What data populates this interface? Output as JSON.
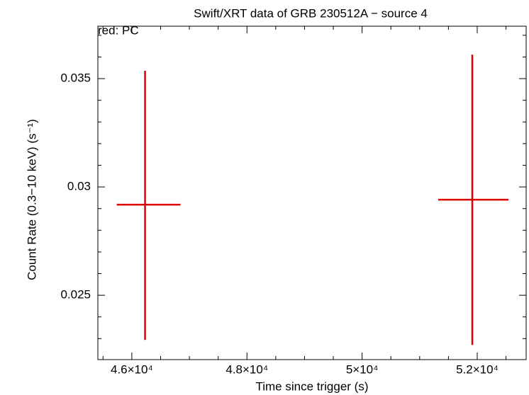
{
  "chart_data": {
    "type": "errorbar",
    "title": "Swift/XRT data of GRB 230512A − source 4",
    "subtitle": "red: PC",
    "x_label": "Time since trigger (s)",
    "y_label": "Count Rate (0.3−10 keV) (s⁻¹)",
    "xlim": [
      45410,
      52850
    ],
    "ylim": [
      0.02203,
      0.03742
    ],
    "xticks": [
      {
        "value": 46000,
        "label": "4.6×10⁴"
      },
      {
        "value": 48000,
        "label": "4.8×10⁴"
      },
      {
        "value": 50000,
        "label": "5×10⁴"
      },
      {
        "value": 52000,
        "label": "5.2×10⁴"
      }
    ],
    "yticks": [
      0.025,
      0.03,
      0.035
    ],
    "xminorticks": [
      45500,
      46500,
      47000,
      47500,
      48500,
      49000,
      49500,
      50500,
      51000,
      51500,
      52500
    ],
    "yminorticks": [
      0.023,
      0.024,
      0.026,
      0.027,
      0.028,
      0.029,
      0.031,
      0.032,
      0.033,
      0.034,
      0.036,
      0.037
    ],
    "series": [
      {
        "name": "PC",
        "color": "#e00000",
        "x": [
          46230,
          51914
        ],
        "xerr_minus": [
          492,
          591
        ],
        "xerr_plus": [
          615,
          628
        ],
        "values": [
          0.02918,
          0.02941
        ],
        "yerr_plus": [
          0.00618,
          0.0067
        ],
        "yerr_minus": [
          0.00624,
          0.0067
        ]
      }
    ]
  }
}
